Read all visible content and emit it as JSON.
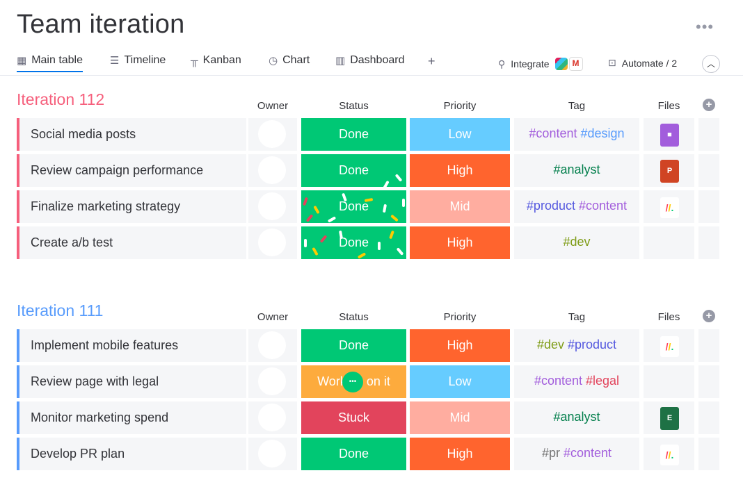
{
  "page_title": "Team iteration",
  "more_label": "•••",
  "tabs": [
    {
      "label": "Main table",
      "icon": "table-icon"
    },
    {
      "label": "Timeline",
      "icon": "timeline-icon"
    },
    {
      "label": "Kanban",
      "icon": "kanban-icon"
    },
    {
      "label": "Chart",
      "icon": "chart-icon"
    },
    {
      "label": "Dashboard",
      "icon": "dashboard-icon"
    }
  ],
  "add_view_label": "+",
  "integrate_label": "Integrate",
  "automate_label": "Automate / 2",
  "columns": {
    "owner": "Owner",
    "status": "Status",
    "priority": "Priority",
    "tag": "Tag",
    "files": "Files"
  },
  "colors": {
    "done": "#00c875",
    "working": "#fdab3d",
    "stuck": "#e2445c",
    "low": "#579bfc",
    "high": "#ff642e",
    "mid": "#ffada0",
    "group1": "#f65f7c",
    "group2": "#579bfc"
  },
  "groups": [
    {
      "title": "Iteration 112",
      "color": "#f65f7c",
      "rows": [
        {
          "name": "Social media posts",
          "status": "Done",
          "status_color": "#00c875",
          "priority": "Low",
          "priority_color": "#66ccff",
          "tags": [
            {
              "text": "#content",
              "color": "#a25ddc"
            },
            {
              "text": "#design",
              "color": "#579bfc"
            }
          ],
          "file": "video"
        },
        {
          "name": "Review campaign performance",
          "status": "Done",
          "status_color": "#00c875",
          "priority": "High",
          "priority_color": "#ff642e",
          "tags": [
            {
              "text": "#analyst",
              "color": "#037f4c"
            }
          ],
          "file": "ppt"
        },
        {
          "name": "Finalize marketing strategy",
          "status": "Done",
          "status_color": "#00c875",
          "priority": "Mid",
          "priority_color": "#ffada0",
          "tags": [
            {
              "text": "#product",
              "color": "#5559df"
            },
            {
              "text": "#content",
              "color": "#a25ddc"
            }
          ],
          "file": "monday"
        },
        {
          "name": "Create a/b test",
          "status": "Done",
          "status_color": "#00c875",
          "priority": "High",
          "priority_color": "#ff642e",
          "tags": [
            {
              "text": "#dev",
              "color": "#7e9c16"
            }
          ],
          "file": ""
        }
      ]
    },
    {
      "title": "Iteration 111",
      "color": "#579bfc",
      "rows": [
        {
          "name": "Implement mobile features",
          "status": "Done",
          "status_color": "#00c875",
          "priority": "High",
          "priority_color": "#ff642e",
          "tags": [
            {
              "text": "#dev",
              "color": "#7e9c16"
            },
            {
              "text": "#product",
              "color": "#5559df"
            }
          ],
          "file": "monday"
        },
        {
          "name": "Review page with legal",
          "status": "Working on it",
          "status_color": "#fdab3d",
          "priority": "Low",
          "priority_color": "#66ccff",
          "tags": [
            {
              "text": "#content",
              "color": "#a25ddc"
            },
            {
              "text": "#legal",
              "color": "#e2445c"
            }
          ],
          "file": ""
        },
        {
          "name": "Monitor marketing spend",
          "status": "Stuck",
          "status_color": "#e2445c",
          "priority": "Mid",
          "priority_color": "#ffada0",
          "tags": [
            {
              "text": "#analyst",
              "color": "#037f4c"
            }
          ],
          "file": "excel"
        },
        {
          "name": "Develop PR plan",
          "status": "Done",
          "status_color": "#00c875",
          "priority": "High",
          "priority_color": "#ff642e",
          "tags": [
            {
              "text": "#pr",
              "color": "#757575"
            },
            {
              "text": "#content",
              "color": "#a25ddc"
            }
          ],
          "file": "monday"
        }
      ]
    }
  ],
  "file_icons": {
    "video": "video-file-icon",
    "ppt": "powerpoint-file-icon",
    "excel": "excel-file-icon",
    "monday": "monday-logo-icon"
  },
  "file_letters": {
    "ppt": "P",
    "excel": "E"
  }
}
